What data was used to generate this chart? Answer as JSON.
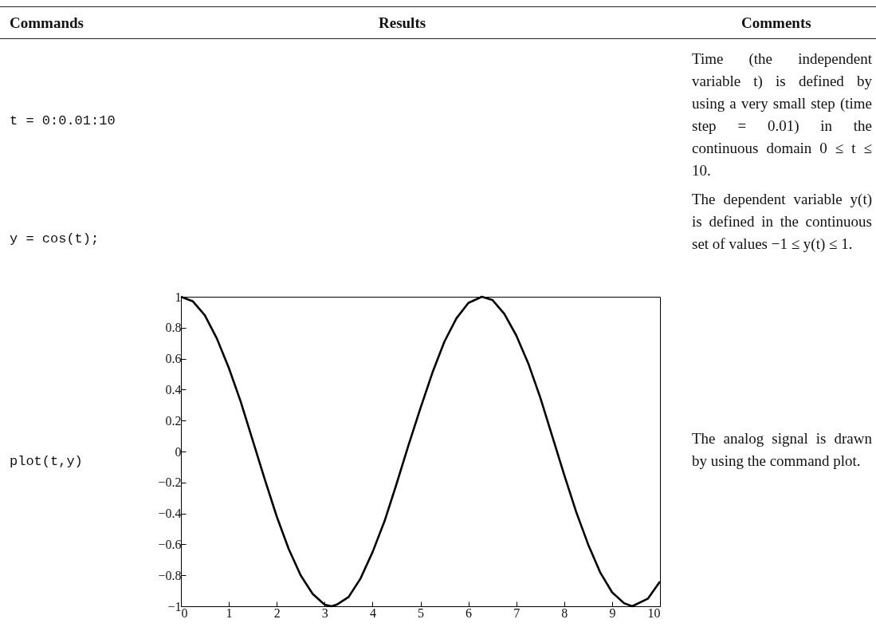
{
  "chart_data": {
    "type": "line",
    "annotations": [
      "Commands",
      "Results",
      "Comments",
      "t = 0:0.01:10",
      "Time (the independent variable t) is defined by using a very small step (time step = 0.01) in the continuous domain 0 ≤ t ≤ 10.",
      "y = cos(t);",
      "The dependent variable y(t) is defined in the continuous set of values −1 ≤ y(t) ≤ 1.",
      "plot(t,y)",
      "The analog signal is drawn by using the command plot."
    ],
    "x": [
      0,
      0.25,
      0.5,
      0.75,
      1,
      1.25,
      1.5,
      1.75,
      2,
      2.25,
      2.5,
      2.75,
      3,
      3.14,
      3.25,
      3.5,
      3.75,
      4,
      4.25,
      4.5,
      4.75,
      5,
      5.25,
      5.5,
      5.75,
      6,
      6.28,
      6.5,
      6.75,
      7,
      7.25,
      7.5,
      7.75,
      8,
      8.25,
      8.5,
      8.75,
      9,
      9.25,
      9.42,
      9.75,
      10
    ],
    "series": [
      {
        "color": "#000000",
        "values": [
          1,
          0.97,
          0.88,
          0.73,
          0.54,
          0.32,
          0.07,
          -0.18,
          -0.42,
          -0.63,
          -0.8,
          -0.92,
          -0.99,
          -1,
          -0.99,
          -0.94,
          -0.82,
          -0.65,
          -0.45,
          -0.21,
          0.04,
          0.28,
          0.51,
          0.71,
          0.86,
          0.96,
          1,
          0.98,
          0.89,
          0.75,
          0.57,
          0.35,
          0.1,
          -0.15,
          -0.39,
          -0.6,
          -0.78,
          -0.91,
          -0.98,
          -1,
          -0.95,
          -0.84
        ]
      }
    ],
    "xlim": [
      0,
      10
    ],
    "xticks": [
      0,
      1,
      2,
      3,
      4,
      5,
      6,
      7,
      8,
      9,
      10
    ],
    "ylim": [
      -1,
      1
    ],
    "yticks": [
      {
        "value": -1,
        "label": "−1"
      },
      {
        "value": -0.8,
        "label": "−0.8"
      },
      {
        "value": -0.6,
        "label": "−0.6"
      },
      {
        "value": -0.4,
        "label": "−0.4"
      },
      {
        "value": -0.2,
        "label": "−0.2"
      },
      0,
      0.2,
      0.4,
      0.6,
      0.8,
      1
    ]
  }
}
